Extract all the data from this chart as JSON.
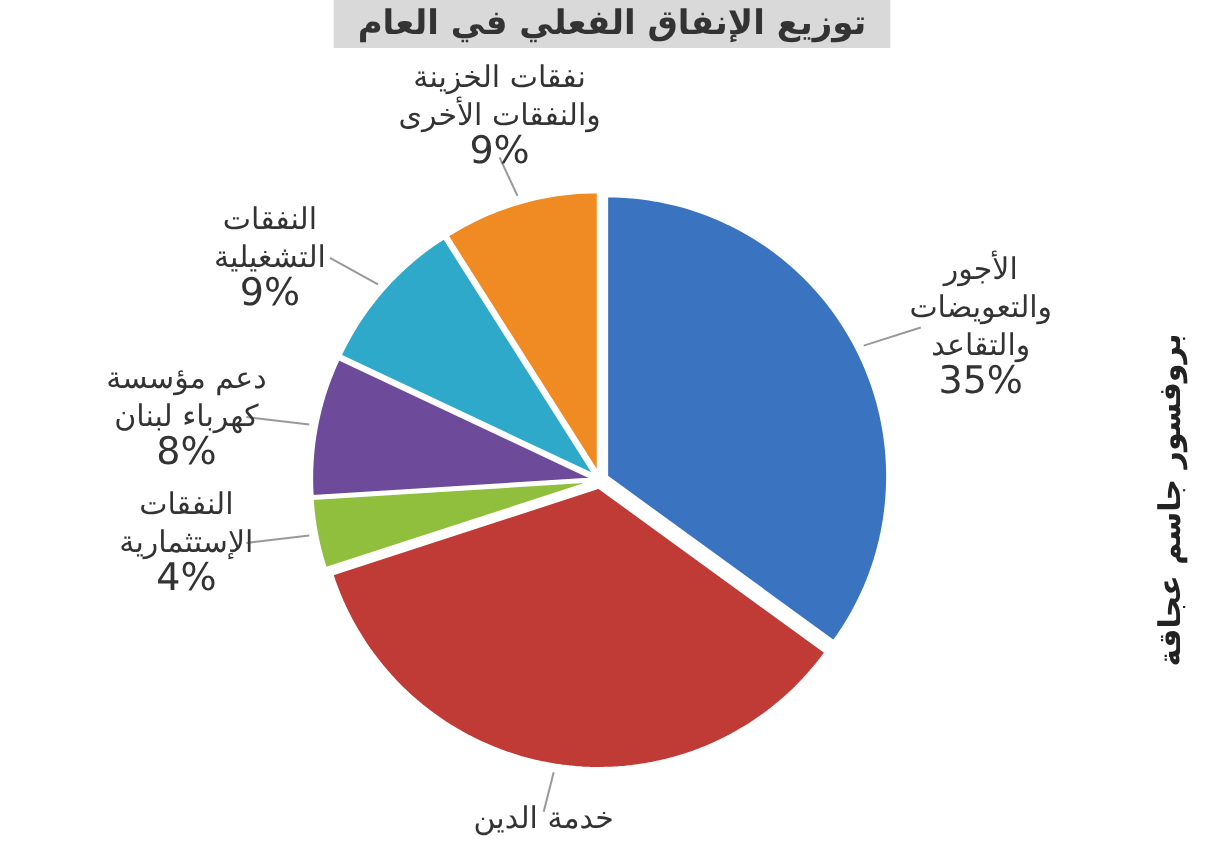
{
  "chart_data": {
    "type": "pie",
    "title": "توزيع الإنفاق الفعلي في العام",
    "categories": [
      "الأجور والتعويضات والتقاعد",
      "خدمة الدين",
      "النفقات الإستثمارية",
      "دعم مؤسسة كهرباء لبنان",
      "النفقات التشغيلية",
      "نفقات الخزينة والنفقات الأخرى"
    ],
    "values": [
      35,
      35,
      4,
      8,
      9,
      9
    ],
    "colors": [
      "#3a73c0",
      "#c03a36",
      "#8fbf3c",
      "#6e4a9a",
      "#2ea9c9",
      "#f08a22"
    ],
    "value_labels": [
      "35%",
      null,
      "4%",
      "8%",
      "9%",
      "9%"
    ],
    "annotations": [
      "بروفسور جاسم عجاقة"
    ]
  }
}
